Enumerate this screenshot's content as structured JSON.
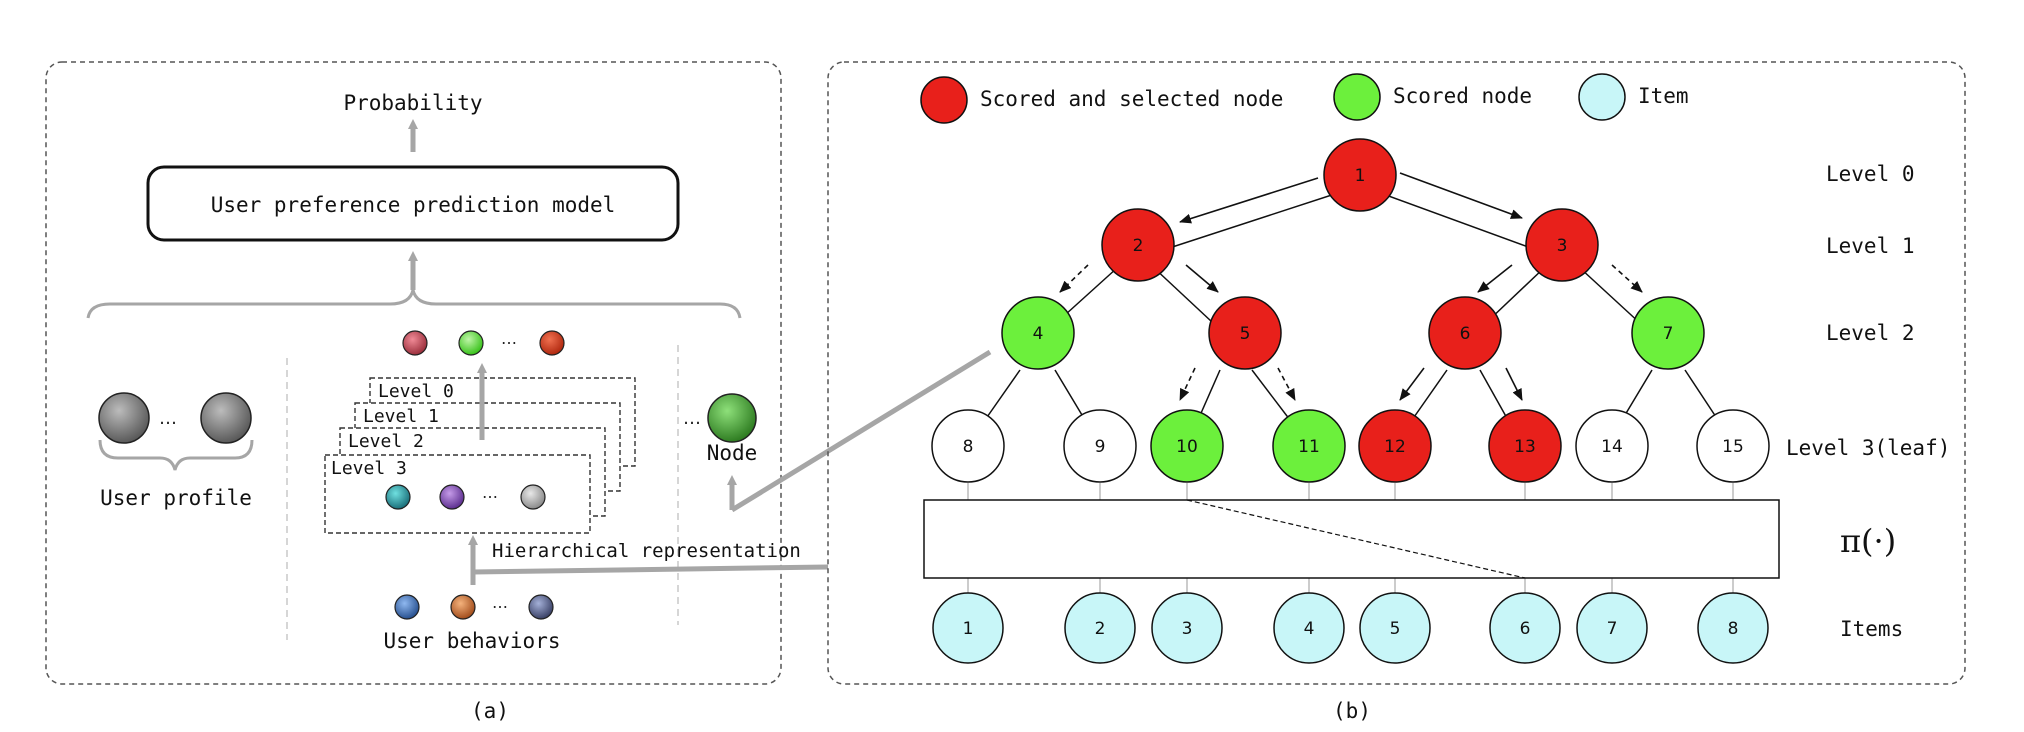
{
  "panel_a": {
    "top_label": "Probability",
    "model_label": "User preference prediction model",
    "profile_label": "User profile",
    "ellipsis": "…",
    "node_label": "Node",
    "levels": [
      "Level 0",
      "Level 1",
      "Level 2",
      "Level 3"
    ],
    "hier_label": "Hierarchical representation",
    "behaviors_label": "User behaviors",
    "caption": "(a)"
  },
  "panel_b": {
    "legend": {
      "selected": "Scored and selected node",
      "scored": "Scored node",
      "item": "Item"
    },
    "level_labels": [
      "Level 0",
      "Level 1",
      "Level 2",
      "Level 3(leaf)"
    ],
    "pi_label": "π(·)",
    "items_label": "Items",
    "node_labels": [
      "1",
      "2",
      "3",
      "4",
      "5",
      "6",
      "7",
      "8",
      "9",
      "10",
      "11",
      "12",
      "13",
      "14",
      "15"
    ],
    "item_labels": [
      "1",
      "2",
      "3",
      "4",
      "5",
      "6",
      "7",
      "8"
    ],
    "caption": "(b)"
  },
  "colors": {
    "selected": "#e8201b",
    "scored": "#6cf03c",
    "item": "#c8f6f8",
    "plain": "#ffffff",
    "arrow_gray": "#a6a6a6"
  }
}
